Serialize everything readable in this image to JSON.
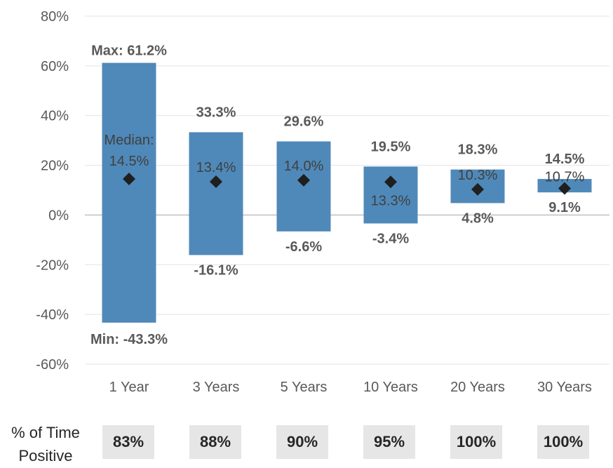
{
  "chart_data": {
    "type": "floating-bar",
    "categories": [
      "1 Year",
      "3 Years",
      "5 Years",
      "10 Years",
      "20 Years",
      "30 Years"
    ],
    "max": [
      61.2,
      33.3,
      29.6,
      19.5,
      18.3,
      14.5
    ],
    "min": [
      -43.3,
      -16.1,
      -6.6,
      -3.4,
      4.8,
      9.1
    ],
    "median": [
      14.5,
      13.4,
      14.0,
      13.3,
      10.3,
      10.7
    ],
    "max_labels": [
      "Max: 61.2%",
      "33.3%",
      "29.6%",
      "19.5%",
      "18.3%",
      "14.5%"
    ],
    "min_labels": [
      "Min: -43.3%",
      "-16.1%",
      "-6.6%",
      "-3.4%",
      "4.8%",
      "9.1%"
    ],
    "median_labels": [
      "14.5%",
      "13.4%",
      "14.0%",
      "13.3%",
      "10.3%",
      "10.7%"
    ],
    "median_title": "Median:",
    "ylim": [
      -60,
      80
    ],
    "yticks": [
      80,
      60,
      40,
      20,
      0,
      -20,
      -40,
      -60
    ],
    "ytick_labels": [
      "80%",
      "60%",
      "40%",
      "20%",
      "0%",
      "-20%",
      "-40%",
      "-60%"
    ],
    "grid": true,
    "colors": {
      "bar": "#4f89b9",
      "marker": "#1f1f1f",
      "grid": "#e3e3e3",
      "zero_line": "#a6a6a6"
    }
  },
  "footer": {
    "label": "% of Time Positive",
    "values": [
      "83%",
      "88%",
      "90%",
      "95%",
      "100%",
      "100%"
    ]
  }
}
